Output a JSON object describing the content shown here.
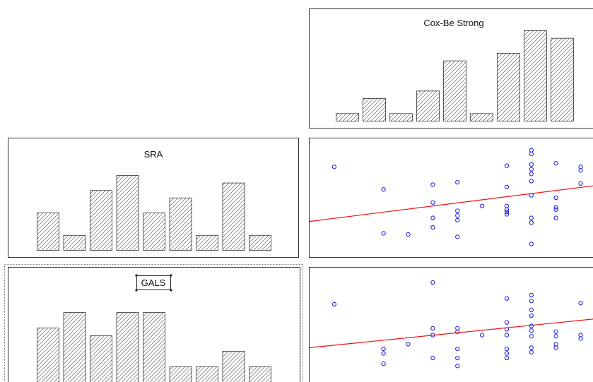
{
  "colors": {
    "points": "#2222dd",
    "fit_line": "#ee1111",
    "frame": "#333333",
    "background": "#ffffff"
  },
  "chart_data": [
    {
      "id": "hist-cox",
      "type": "bar",
      "title": "Cox-Be Strong",
      "values": [
        1,
        3,
        1,
        4,
        8,
        1,
        9,
        12,
        11
      ],
      "ylim": [
        0,
        12
      ]
    },
    {
      "id": "hist-sra",
      "type": "bar",
      "title": "SRA",
      "values": [
        5,
        2,
        8,
        10,
        5,
        7,
        2,
        9,
        2
      ],
      "ylim": [
        0,
        10
      ]
    },
    {
      "id": "hist-gals",
      "type": "bar",
      "title": "GALS",
      "selected": true,
      "values": [
        7,
        9,
        6,
        9,
        9,
        2,
        2,
        4,
        2
      ],
      "ylim": [
        0,
        9
      ]
    },
    {
      "id": "scatter-sra-cox",
      "type": "scatter",
      "xlim": [
        0,
        11.5
      ],
      "ylim": [
        0,
        10
      ],
      "points": [
        [
          1,
          7.6
        ],
        [
          3,
          5.7
        ],
        [
          3,
          2
        ],
        [
          4,
          1.9
        ],
        [
          5,
          6.1
        ],
        [
          5,
          4.6
        ],
        [
          5,
          3.3
        ],
        [
          5,
          2.5
        ],
        [
          6,
          6.3
        ],
        [
          6,
          3.9
        ],
        [
          6,
          3.5
        ],
        [
          6,
          3.1
        ],
        [
          6,
          1.7
        ],
        [
          7,
          4.3
        ],
        [
          8,
          7.7
        ],
        [
          8,
          5.9
        ],
        [
          8,
          4.3
        ],
        [
          8,
          4.0
        ],
        [
          8,
          3.8
        ],
        [
          8,
          3.6
        ],
        [
          9,
          9.0
        ],
        [
          9,
          8.7
        ],
        [
          9,
          7.8
        ],
        [
          9,
          7.4
        ],
        [
          9,
          7.0
        ],
        [
          9,
          6.4
        ],
        [
          9,
          5.2
        ],
        [
          9,
          3.3
        ],
        [
          9,
          2.9
        ],
        [
          9,
          1.1
        ],
        [
          10,
          7.9
        ],
        [
          10,
          5.0
        ],
        [
          10,
          4.2
        ],
        [
          10,
          4.0
        ],
        [
          10,
          3.3
        ],
        [
          11,
          7.6
        ],
        [
          11,
          7.3
        ],
        [
          11,
          6.2
        ]
      ],
      "fit": [
        [
          0,
          3.0
        ],
        [
          11.5,
          6.0
        ]
      ]
    },
    {
      "id": "scatter-gals-cox",
      "type": "scatter",
      "xlim": [
        0,
        11.5
      ],
      "ylim": [
        0,
        10
      ],
      "points": [
        [
          1,
          6.8
        ],
        [
          3,
          2.9
        ],
        [
          3,
          2.5
        ],
        [
          3,
          1.6
        ],
        [
          4,
          3.3
        ],
        [
          5,
          8.7
        ],
        [
          5,
          4.7
        ],
        [
          5,
          4.1
        ],
        [
          5,
          2.1
        ],
        [
          6,
          4.7
        ],
        [
          6,
          4.4
        ],
        [
          6,
          2.9
        ],
        [
          6,
          2.1
        ],
        [
          6,
          1.4
        ],
        [
          7,
          4.1
        ],
        [
          8,
          7.3
        ],
        [
          8,
          5.2
        ],
        [
          8,
          4.6
        ],
        [
          8,
          4.1
        ],
        [
          8,
          2.9
        ],
        [
          8,
          2.5
        ],
        [
          8,
          2.1
        ],
        [
          9,
          7.6
        ],
        [
          9,
          7.1
        ],
        [
          9,
          6.3
        ],
        [
          9,
          5.8
        ],
        [
          9,
          4.9
        ],
        [
          9,
          4.5
        ],
        [
          9,
          4.0
        ],
        [
          9,
          3.0
        ],
        [
          9,
          2.6
        ],
        [
          10,
          4.4
        ],
        [
          10,
          4.0
        ],
        [
          10,
          3.3
        ],
        [
          10,
          3.0
        ],
        [
          11,
          6.9
        ],
        [
          11,
          4.1
        ],
        [
          11,
          3.8
        ]
      ],
      "fit": [
        [
          0,
          3.0
        ],
        [
          11.5,
          5.5
        ]
      ]
    }
  ]
}
